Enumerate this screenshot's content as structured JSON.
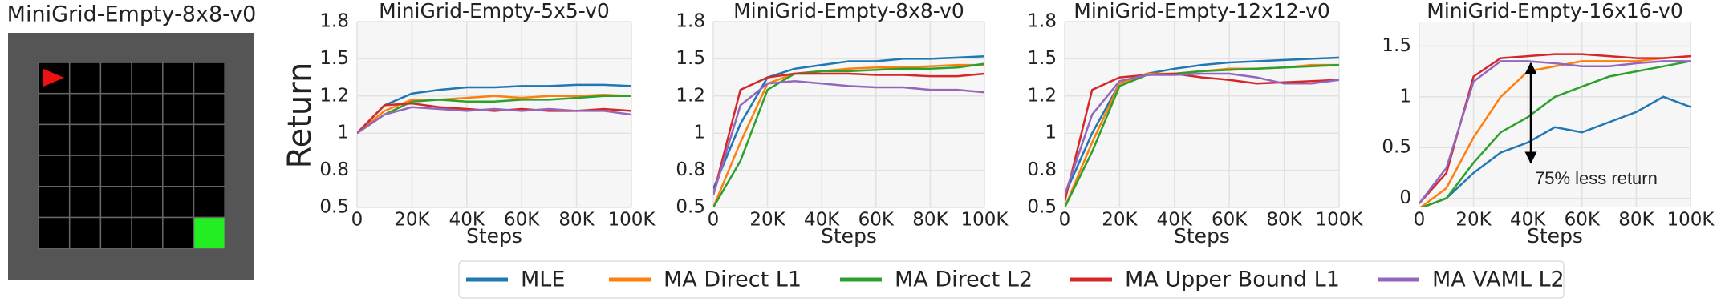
{
  "environment": {
    "title": "MiniGrid-Empty-8x8-v0"
  },
  "legend": [
    {
      "name": "MLE",
      "color": "#1f77b4"
    },
    {
      "name": "MA Direct L1",
      "color": "#ff7f0e"
    },
    {
      "name": "MA Direct L2",
      "color": "#2ca02c"
    },
    {
      "name": "MA Upper Bound L1",
      "color": "#d62728"
    },
    {
      "name": "MA VAML L2",
      "color": "#9467bd"
    }
  ],
  "chart_data": [
    {
      "type": "line",
      "title": "MiniGrid-Empty-5x5-v0",
      "x_label": "Steps",
      "y_label": "Return",
      "grid": true,
      "x": [
        0,
        10000,
        20000,
        30000,
        40000,
        50000,
        60000,
        70000,
        80000,
        90000,
        100000
      ],
      "xlim": [
        0,
        100000
      ],
      "xticks": [
        0,
        {
          "value": 20000,
          "label": "20K"
        },
        {
          "value": 40000,
          "label": "40K"
        },
        {
          "value": 60000,
          "label": "60K"
        },
        {
          "value": 80000,
          "label": "80K"
        },
        {
          "value": 100000,
          "label": "100K"
        }
      ],
      "yscale": "piecewise",
      "ylim": [
        0.5,
        1.8
      ],
      "yticks": [
        0.5,
        0.8,
        1,
        1.2,
        1.5,
        1.8
      ],
      "series": [
        {
          "values": [
            1.0,
            1.15,
            1.22,
            1.25,
            1.27,
            1.27,
            1.28,
            1.28,
            1.29,
            1.29,
            1.28
          ]
        },
        {
          "values": [
            1.0,
            1.12,
            1.18,
            1.18,
            1.19,
            1.2,
            1.19,
            1.2,
            1.2,
            1.21,
            1.2
          ]
        },
        {
          "values": [
            1.0,
            1.1,
            1.17,
            1.18,
            1.17,
            1.17,
            1.18,
            1.18,
            1.19,
            1.2,
            1.2
          ]
        },
        {
          "values": [
            1.0,
            1.15,
            1.16,
            1.14,
            1.13,
            1.12,
            1.13,
            1.12,
            1.12,
            1.13,
            1.12
          ]
        },
        {
          "values": [
            1.0,
            1.1,
            1.14,
            1.13,
            1.12,
            1.13,
            1.12,
            1.13,
            1.12,
            1.12,
            1.1
          ]
        }
      ]
    },
    {
      "type": "line",
      "title": "MiniGrid-Empty-8x8-v0",
      "x_label": "Steps",
      "grid": true,
      "x": [
        0,
        10000,
        20000,
        30000,
        40000,
        50000,
        60000,
        70000,
        80000,
        90000,
        100000
      ],
      "xlim": [
        0,
        100000
      ],
      "xticks": [
        0,
        {
          "value": 20000,
          "label": "20K"
        },
        {
          "value": 40000,
          "label": "40K"
        },
        {
          "value": 60000,
          "label": "60K"
        },
        {
          "value": 80000,
          "label": "80K"
        },
        {
          "value": 100000,
          "label": "100K"
        }
      ],
      "yscale": "piecewise",
      "ylim": [
        0.5,
        1.8
      ],
      "yticks": [
        0.5,
        0.8,
        1,
        1.2,
        1.5,
        1.8
      ],
      "series": [
        {
          "values": [
            0.65,
            1.05,
            1.35,
            1.42,
            1.45,
            1.48,
            1.48,
            1.5,
            1.5,
            1.51,
            1.52
          ]
        },
        {
          "values": [
            0.5,
            0.95,
            1.3,
            1.38,
            1.4,
            1.42,
            1.43,
            1.43,
            1.44,
            1.45,
            1.45
          ]
        },
        {
          "values": [
            0.5,
            0.85,
            1.25,
            1.38,
            1.4,
            1.4,
            1.41,
            1.42,
            1.42,
            1.43,
            1.46
          ]
        },
        {
          "values": [
            0.6,
            1.25,
            1.35,
            1.38,
            1.38,
            1.38,
            1.37,
            1.37,
            1.36,
            1.36,
            1.38
          ]
        },
        {
          "values": [
            0.6,
            1.15,
            1.3,
            1.32,
            1.3,
            1.28,
            1.27,
            1.27,
            1.25,
            1.25,
            1.23
          ]
        }
      ]
    },
    {
      "type": "line",
      "title": "MiniGrid-Empty-12x12-v0",
      "x_label": "Steps",
      "grid": true,
      "x": [
        0,
        10000,
        20000,
        30000,
        40000,
        50000,
        60000,
        70000,
        80000,
        90000,
        100000
      ],
      "xlim": [
        0,
        100000
      ],
      "xticks": [
        0,
        {
          "value": 20000,
          "label": "20K"
        },
        {
          "value": 40000,
          "label": "40K"
        },
        {
          "value": 60000,
          "label": "60K"
        },
        {
          "value": 80000,
          "label": "80K"
        },
        {
          "value": 100000,
          "label": "100K"
        }
      ],
      "yscale": "piecewise",
      "ylim": [
        0.5,
        1.8
      ],
      "yticks": [
        0.5,
        0.8,
        1,
        1.2,
        1.5,
        1.8
      ],
      "series": [
        {
          "values": [
            0.6,
            1.0,
            1.3,
            1.38,
            1.42,
            1.45,
            1.47,
            1.48,
            1.49,
            1.5,
            1.51
          ]
        },
        {
          "values": [
            0.5,
            0.95,
            1.3,
            1.38,
            1.38,
            1.4,
            1.42,
            1.42,
            1.43,
            1.45,
            1.45
          ]
        },
        {
          "values": [
            0.5,
            0.9,
            1.28,
            1.37,
            1.38,
            1.4,
            1.41,
            1.42,
            1.43,
            1.44,
            1.45
          ]
        },
        {
          "values": [
            0.55,
            1.25,
            1.35,
            1.37,
            1.38,
            1.35,
            1.33,
            1.3,
            1.31,
            1.32,
            1.33
          ]
        },
        {
          "values": [
            0.6,
            1.1,
            1.32,
            1.37,
            1.37,
            1.38,
            1.38,
            1.35,
            1.3,
            1.3,
            1.33
          ]
        }
      ]
    },
    {
      "type": "line",
      "title": "MiniGrid-Empty-16x16-v0",
      "x_label": "Steps",
      "grid": true,
      "annotation": "75% less return",
      "x": [
        0,
        10000,
        20000,
        30000,
        40000,
        50000,
        60000,
        70000,
        80000,
        90000,
        100000
      ],
      "xlim": [
        0,
        100000
      ],
      "xticks": [
        0,
        {
          "value": 20000,
          "label": "20K"
        },
        {
          "value": 40000,
          "label": "40K"
        },
        {
          "value": 60000,
          "label": "60K"
        },
        {
          "value": 80000,
          "label": "80K"
        },
        {
          "value": 100000,
          "label": "100K"
        }
      ],
      "yscale": "linear",
      "ylim": [
        -0.09,
        1.74
      ],
      "yticks": [
        0,
        0.5,
        1,
        1.5
      ],
      "series": [
        {
          "values": [
            -0.1,
            0,
            0.25,
            0.45,
            0.55,
            0.7,
            0.65,
            0.75,
            0.85,
            1.0,
            0.9
          ]
        },
        {
          "values": [
            -0.1,
            0.1,
            0.6,
            1.0,
            1.25,
            1.3,
            1.35,
            1.35,
            1.35,
            1.38,
            1.4
          ]
        },
        {
          "values": [
            -0.1,
            0.0,
            0.35,
            0.65,
            0.8,
            1.0,
            1.1,
            1.2,
            1.25,
            1.3,
            1.35
          ]
        },
        {
          "values": [
            -0.05,
            0.25,
            1.2,
            1.38,
            1.4,
            1.42,
            1.42,
            1.4,
            1.38,
            1.38,
            1.4
          ]
        },
        {
          "values": [
            -0.05,
            0.3,
            1.15,
            1.35,
            1.35,
            1.33,
            1.3,
            1.3,
            1.33,
            1.35,
            1.35
          ]
        }
      ]
    }
  ]
}
